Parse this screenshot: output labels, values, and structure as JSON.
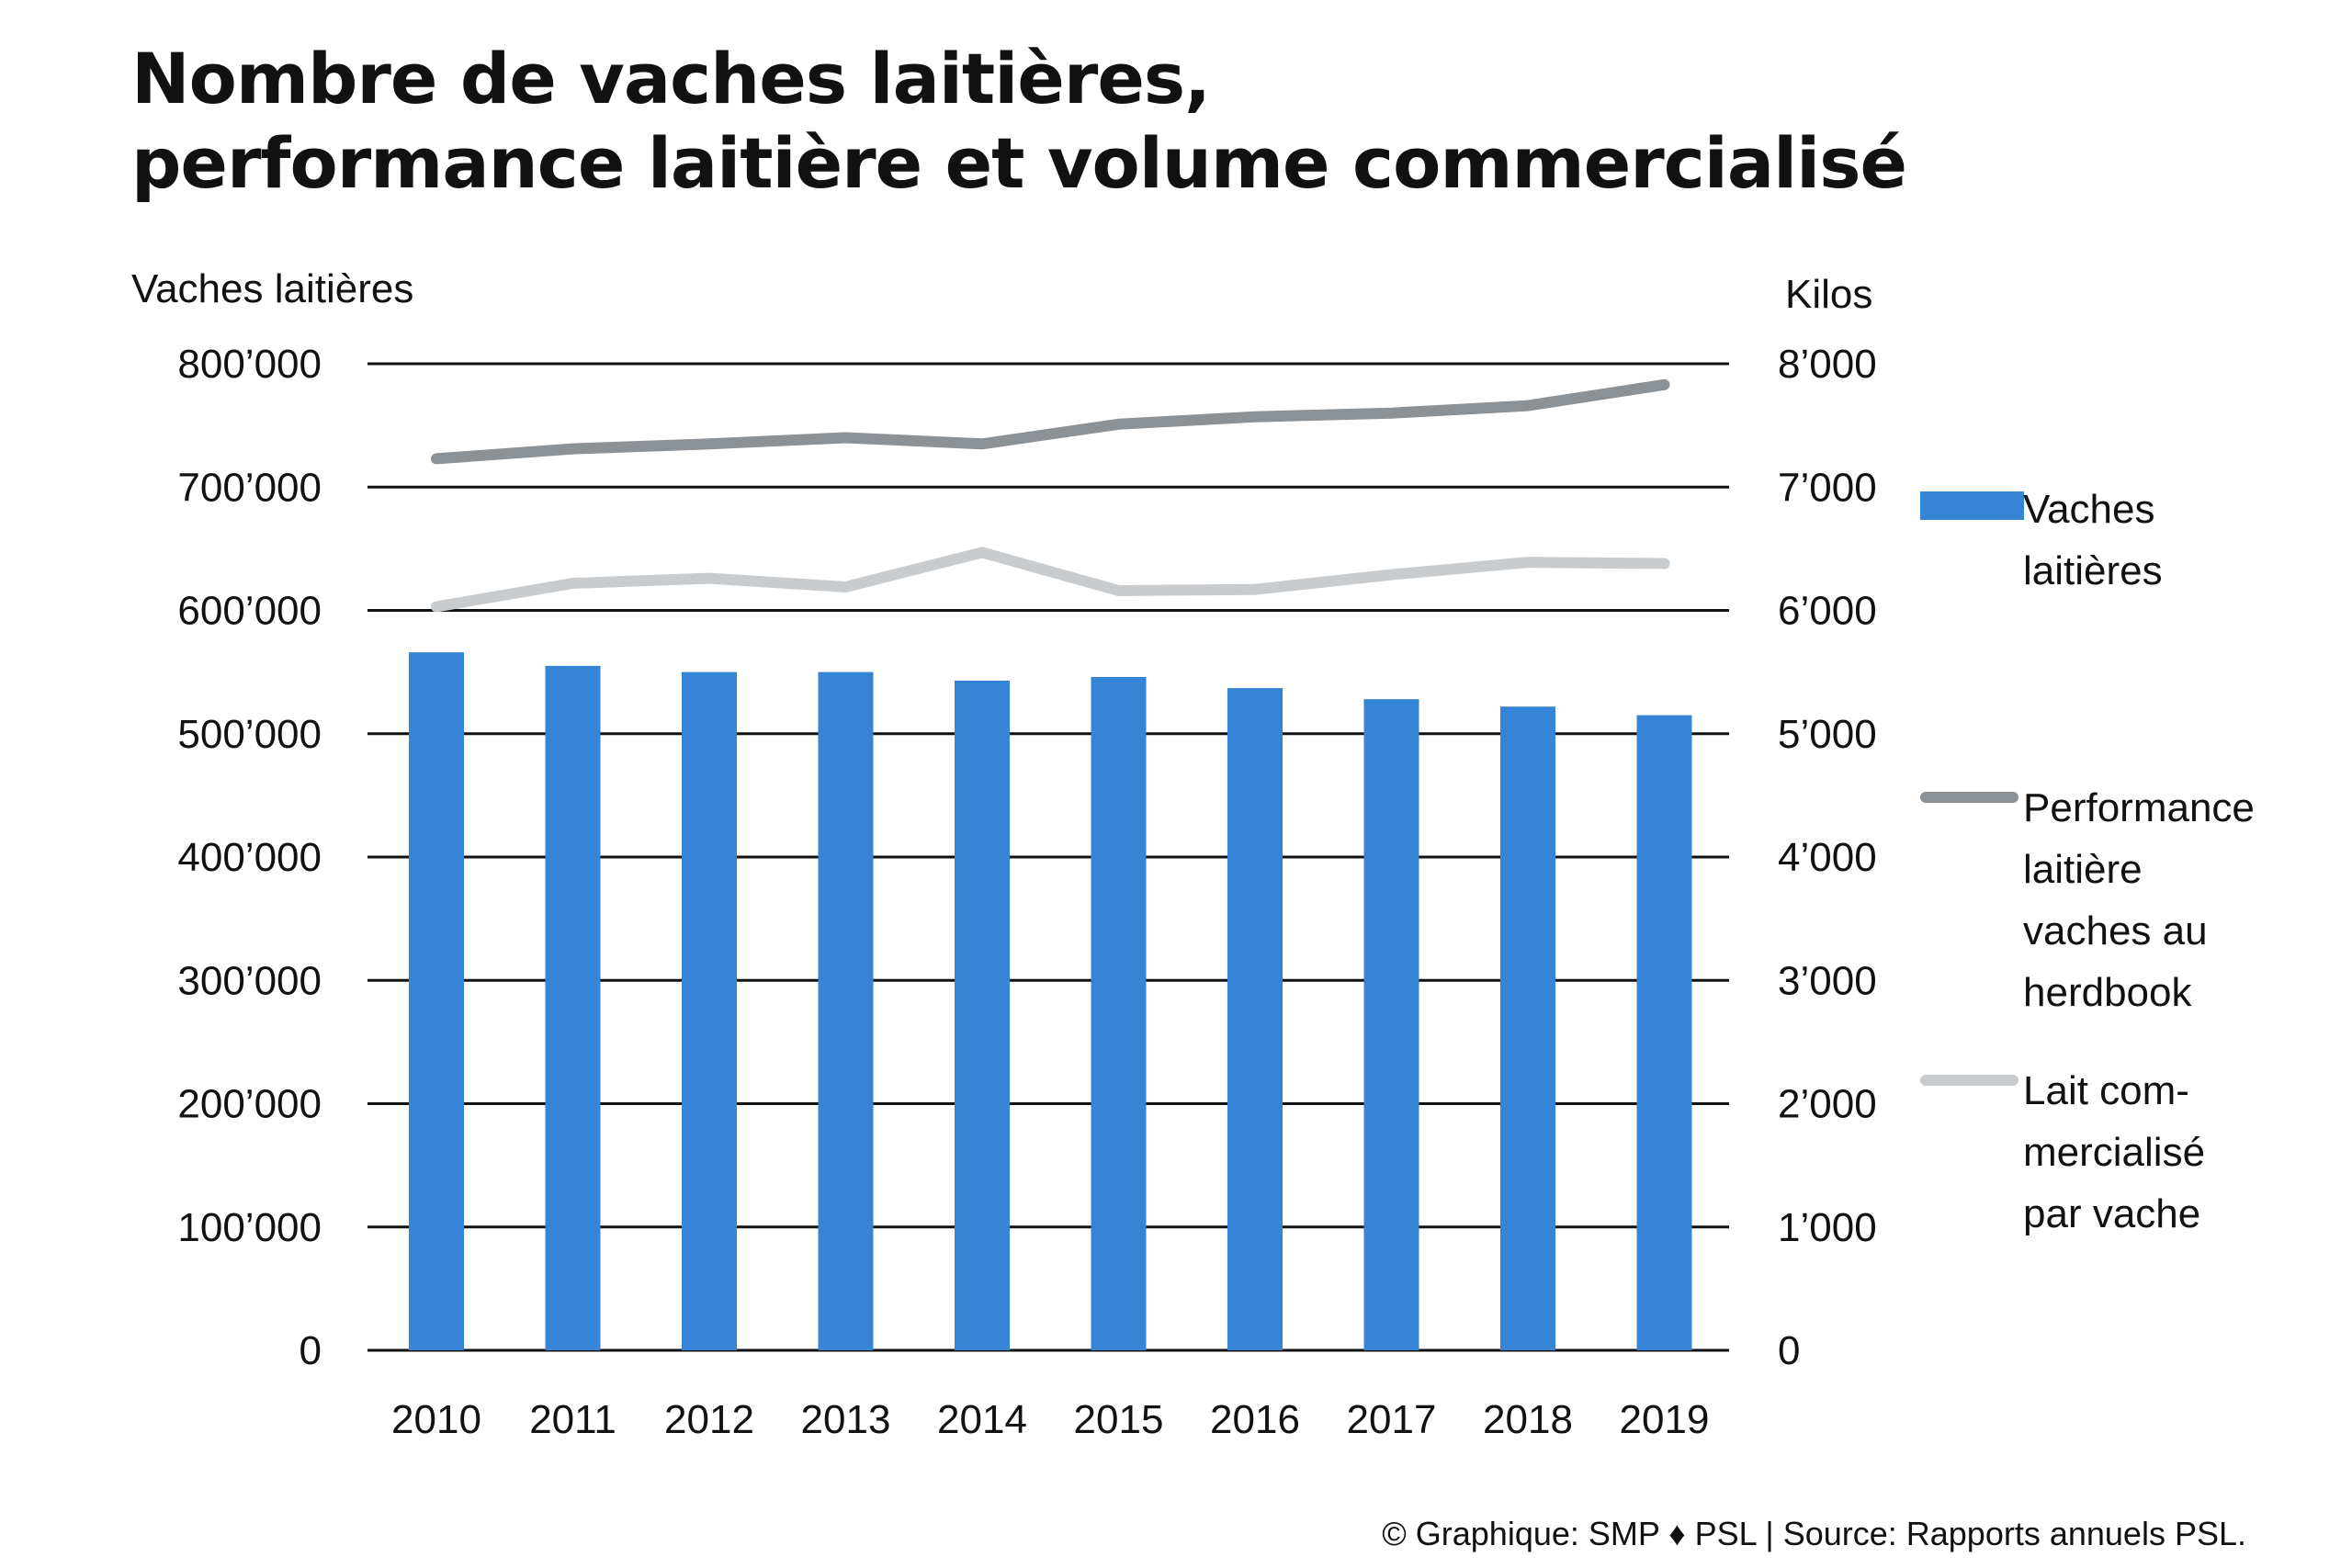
{
  "header": {
    "title_line1": "Nombre de vaches laitières,",
    "title_line2": "performance laitière et volume commercialisé"
  },
  "axes": {
    "left_title": "Vaches laitières",
    "right_title": "Kilos"
  },
  "chart_data": {
    "type": "bar",
    "categories": [
      "2010",
      "2011",
      "2012",
      "2013",
      "2014",
      "2015",
      "2016",
      "2017",
      "2018",
      "2019"
    ],
    "y_left": {
      "label": "Vaches laitières",
      "ylim": [
        0,
        800000
      ],
      "ticks": [
        0,
        100000,
        200000,
        300000,
        400000,
        500000,
        600000,
        700000,
        800000
      ],
      "tick_labels": [
        "0",
        "100’000",
        "200’000",
        "300’000",
        "400’000",
        "500’000",
        "600’000",
        "700’000",
        "800’000"
      ]
    },
    "y_right": {
      "label": "Kilos",
      "ylim": [
        0,
        8000
      ],
      "ticks": [
        0,
        1000,
        2000,
        3000,
        4000,
        5000,
        6000,
        7000,
        8000
      ],
      "tick_labels": [
        "0",
        "1’000",
        "2’000",
        "3’000",
        "4’000",
        "5’000",
        "6’000",
        "7’000",
        "8’000"
      ]
    },
    "series": [
      {
        "name": "Vaches laitières",
        "type": "bar",
        "axis": "left",
        "color": "#3584d6",
        "values": [
          566000,
          555000,
          550000,
          550000,
          543000,
          546000,
          537000,
          528000,
          522000,
          515000
        ]
      },
      {
        "name": "Performance laitière vaches au herdbook",
        "type": "line",
        "axis": "right",
        "color": "#8c9196",
        "values": [
          7230,
          7310,
          7350,
          7400,
          7350,
          7510,
          7570,
          7600,
          7660,
          7830
        ]
      },
      {
        "name": "Lait commercialisé par vache",
        "type": "line",
        "axis": "right",
        "color": "#c8cccf",
        "values": [
          6030,
          6220,
          6260,
          6190,
          6470,
          6160,
          6170,
          6290,
          6390,
          6380
        ]
      }
    ],
    "grid": true,
    "legend_position": "right"
  },
  "legend": {
    "items": [
      {
        "label": "Vaches\nlaitières"
      },
      {
        "label": "Performance\nlaitière\nvaches au\nherdbook"
      },
      {
        "label": "Lait com-\nmercialisé\npar vache"
      }
    ]
  },
  "footer": {
    "credit": "© Graphique: SMP ♦ PSL | Source: Rapports annuels PSL."
  }
}
